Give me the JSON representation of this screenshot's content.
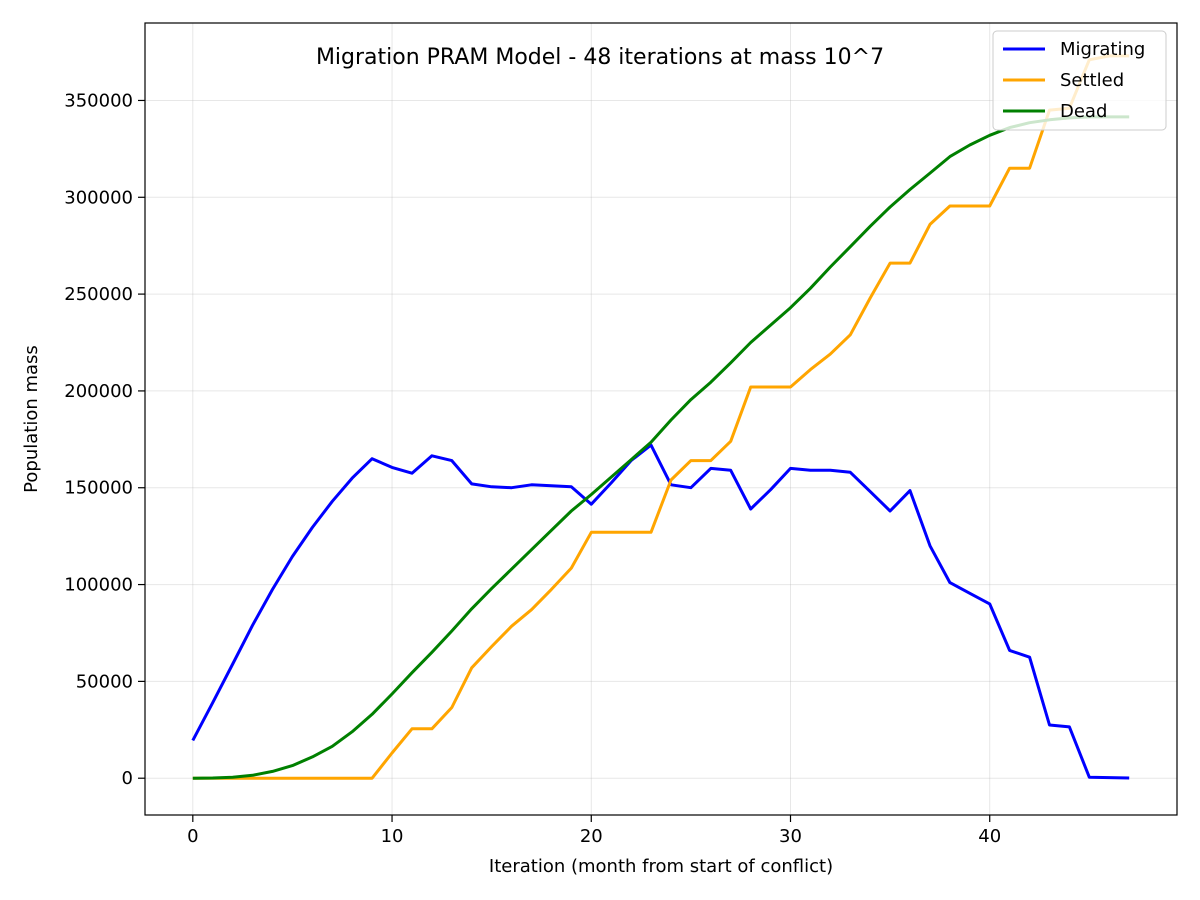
{
  "chart_data": {
    "type": "line",
    "title": "Migration PRAM Model - 48 iterations at mass 10^7",
    "xlabel": "Iteration (month from start of conflict)",
    "ylabel": "Population mass",
    "xlim": [
      -2.4,
      49.4
    ],
    "ylim": [
      -19000,
      390000
    ],
    "x_ticks": [
      0,
      10,
      20,
      30,
      40
    ],
    "y_ticks": [
      0,
      50000,
      100000,
      150000,
      200000,
      250000,
      300000,
      350000
    ],
    "x_tick_labels": [
      "0",
      "10",
      "20",
      "30",
      "40"
    ],
    "y_tick_labels": [
      "0",
      "50000",
      "100000",
      "150000",
      "200000",
      "250000",
      "300000",
      "350000"
    ],
    "grid": true,
    "legend_position": "top-right",
    "x": [
      0,
      1,
      2,
      3,
      4,
      5,
      6,
      7,
      8,
      9,
      10,
      11,
      12,
      13,
      14,
      15,
      16,
      17,
      18,
      19,
      20,
      21,
      22,
      23,
      24,
      25,
      26,
      27,
      28,
      29,
      30,
      31,
      32,
      33,
      34,
      35,
      36,
      37,
      38,
      39,
      40,
      41,
      42,
      43,
      44,
      45,
      46,
      47
    ],
    "series": [
      {
        "name": "Migrating",
        "color": "#0000ff",
        "values": [
          19500,
          39000,
          59000,
          79000,
          97500,
          114500,
          129500,
          143000,
          155000,
          165000,
          160500,
          157500,
          166500,
          164000,
          152000,
          150500,
          150000,
          151500,
          151000,
          150500,
          141500,
          152500,
          164000,
          172000,
          151500,
          150000,
          160000,
          159000,
          139000,
          149000,
          160000,
          159000,
          159000,
          158000,
          148000,
          138000,
          148500,
          120000,
          101000,
          95500,
          90000,
          66000,
          62500,
          27500,
          26500,
          500,
          300,
          100
        ]
      },
      {
        "name": "Settled",
        "color": "#ffa500",
        "values": [
          0,
          0,
          0,
          0,
          0,
          0,
          0,
          0,
          0,
          0,
          13000,
          25500,
          25500,
          36500,
          57000,
          68000,
          78500,
          87000,
          97500,
          108500,
          127000,
          127000,
          127000,
          127000,
          154000,
          164000,
          164000,
          174000,
          202000,
          202000,
          202000,
          211000,
          219000,
          229000,
          248000,
          266000,
          266000,
          286000,
          295500,
          295500,
          295500,
          315000,
          315000,
          345000,
          346000,
          371000,
          373000,
          373000
        ]
      },
      {
        "name": "Dead",
        "color": "#008000",
        "values": [
          0,
          100,
          500,
          1500,
          3500,
          6500,
          11000,
          16500,
          24000,
          33000,
          43500,
          54500,
          65000,
          76000,
          87500,
          98000,
          108000,
          118000,
          128000,
          138000,
          146500,
          155500,
          164500,
          173500,
          185000,
          195500,
          204500,
          214500,
          225000,
          234000,
          243000,
          253000,
          264000,
          274500,
          285000,
          295000,
          304000,
          312500,
          321000,
          327000,
          332000,
          336000,
          338500,
          340000,
          341000,
          341500,
          341500,
          341500
        ]
      }
    ]
  }
}
